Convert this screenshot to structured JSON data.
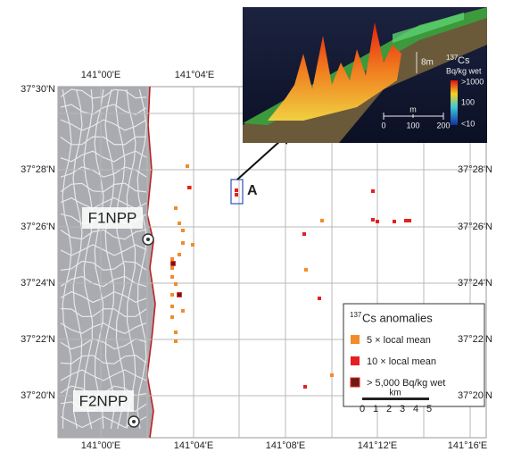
{
  "map": {
    "lon_labels_top": [
      "141°00'E",
      "141°04'E"
    ],
    "lon_labels_bottom": [
      "141°00'E",
      "141°04'E",
      "141°08'E",
      "141°12'E",
      "141°16'E"
    ],
    "lat_labels_left": [
      "37°30'N",
      "37°28'N",
      "37°26'N",
      "37°24'N",
      "37°22'N",
      "37°20'N"
    ],
    "lat_labels_right": [
      "37°28'N",
      "37°26'N",
      "37°24'N",
      "37°22'N",
      "37°20'N"
    ],
    "site_labels": [
      "F1NPP",
      "F2NPP"
    ],
    "marker_label": "A"
  },
  "inset": {
    "isotope_mass": "137",
    "isotope": "Cs",
    "unit": "Bq/kg wet",
    "color_scale_labels": [
      ">1000",
      "100",
      "<10"
    ],
    "height_label": "8m",
    "scale_unit": "m",
    "scale_ticks": [
      "0",
      "100",
      "200"
    ]
  },
  "legend": {
    "title_mass": "137",
    "title": "Cs anomalies",
    "items": [
      "5 × local mean",
      "10 × local mean",
      "> 5,000 Bq/kg wet"
    ],
    "scale_unit": "km",
    "scale_ticks": [
      "0",
      "1",
      "2",
      "3",
      "4",
      "5"
    ]
  }
}
